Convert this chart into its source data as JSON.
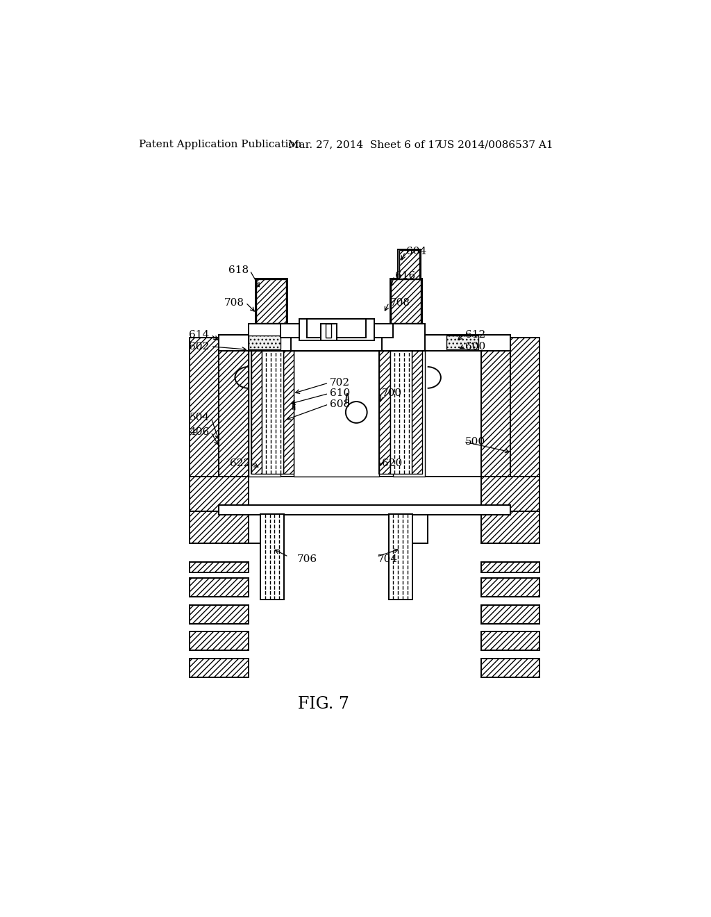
{
  "bg_color": "#ffffff",
  "lc": "#000000",
  "title": "FIG. 7",
  "header_left": "Patent Application Publication",
  "header_mid": "Mar. 27, 2014  Sheet 6 of 17",
  "header_right": "US 2014/0086537 A1"
}
